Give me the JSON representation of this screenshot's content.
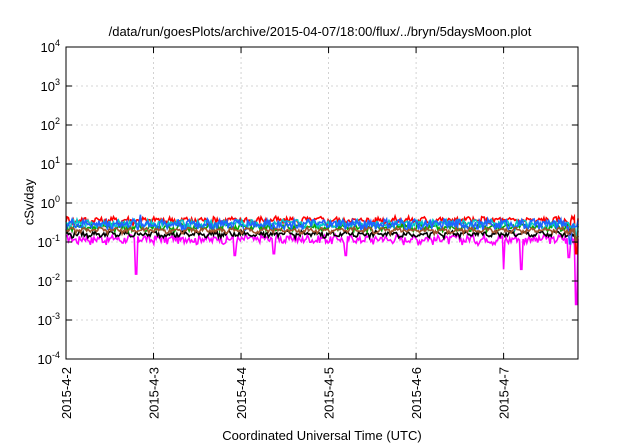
{
  "chart_data": {
    "type": "line",
    "title": "/data/run/goesPlots/archive/2015-04-07/18:00/flux/../bryn/5daysMoon.plot",
    "xlabel": "Coordinated Universal Time (UTC)",
    "ylabel": "cSv/day",
    "yscale": "log",
    "ylim": [
      0.0001,
      10000
    ],
    "y_ticks": [
      {
        "value": 0.0001,
        "base": "10",
        "exp": "-4"
      },
      {
        "value": 0.001,
        "base": "10",
        "exp": "-3"
      },
      {
        "value": 0.01,
        "base": "10",
        "exp": "-2"
      },
      {
        "value": 0.1,
        "base": "10",
        "exp": "-1"
      },
      {
        "value": 1,
        "base": "10",
        "exp": "0"
      },
      {
        "value": 10,
        "base": "10",
        "exp": "1"
      },
      {
        "value": 100,
        "base": "10",
        "exp": "2"
      },
      {
        "value": 1000,
        "base": "10",
        "exp": "3"
      },
      {
        "value": 10000,
        "base": "10",
        "exp": "4"
      }
    ],
    "x_range_days": [
      0,
      5.85
    ],
    "x_ticks": [
      {
        "day": 0,
        "label": "2015-4-2"
      },
      {
        "day": 1,
        "label": "2015-4-3"
      },
      {
        "day": 2,
        "label": "2015-4-4"
      },
      {
        "day": 3,
        "label": "2015-4-5"
      },
      {
        "day": 4,
        "label": "2015-4-6"
      },
      {
        "day": 5,
        "label": "2015-4-7"
      }
    ],
    "grid": true,
    "series": [
      {
        "color": "#ff00ff",
        "base": 0.12,
        "amp": 0.3,
        "dips": [
          [
            0.8,
            0.015
          ],
          [
            1.93,
            0.045
          ],
          [
            2.38,
            0.05
          ],
          [
            3.2,
            0.045
          ],
          [
            5.0,
            0.02
          ],
          [
            5.2,
            0.02
          ],
          [
            5.75,
            0.04
          ],
          [
            5.83,
            0.0025
          ]
        ]
      },
      {
        "color": "#ff0000",
        "base": 0.36,
        "amp": 0.25,
        "dips": [
          [
            5.74,
            0.15
          ],
          [
            5.83,
            0.05
          ]
        ]
      },
      {
        "color": "#000000",
        "base": 0.16,
        "amp": 0.18,
        "dips": [
          [
            5.83,
            0.1
          ]
        ]
      },
      {
        "color": "#00aa00",
        "base": 0.24,
        "amp": 0.2,
        "dips": [
          [
            5.83,
            0.12
          ]
        ]
      },
      {
        "color": "#00c8c8",
        "base": 0.3,
        "amp": 0.25,
        "dips": [
          [
            5.83,
            0.15
          ]
        ]
      },
      {
        "color": "#1e64ff",
        "base": 0.29,
        "amp": 0.35,
        "dips": [
          [
            0.85,
            0.5
          ],
          [
            5.76,
            0.09
          ],
          [
            5.83,
            0.25
          ]
        ]
      },
      {
        "color": "#a0522d",
        "base": 0.2,
        "amp": 0.15,
        "dips": [
          [
            5.83,
            0.1
          ]
        ]
      }
    ]
  }
}
